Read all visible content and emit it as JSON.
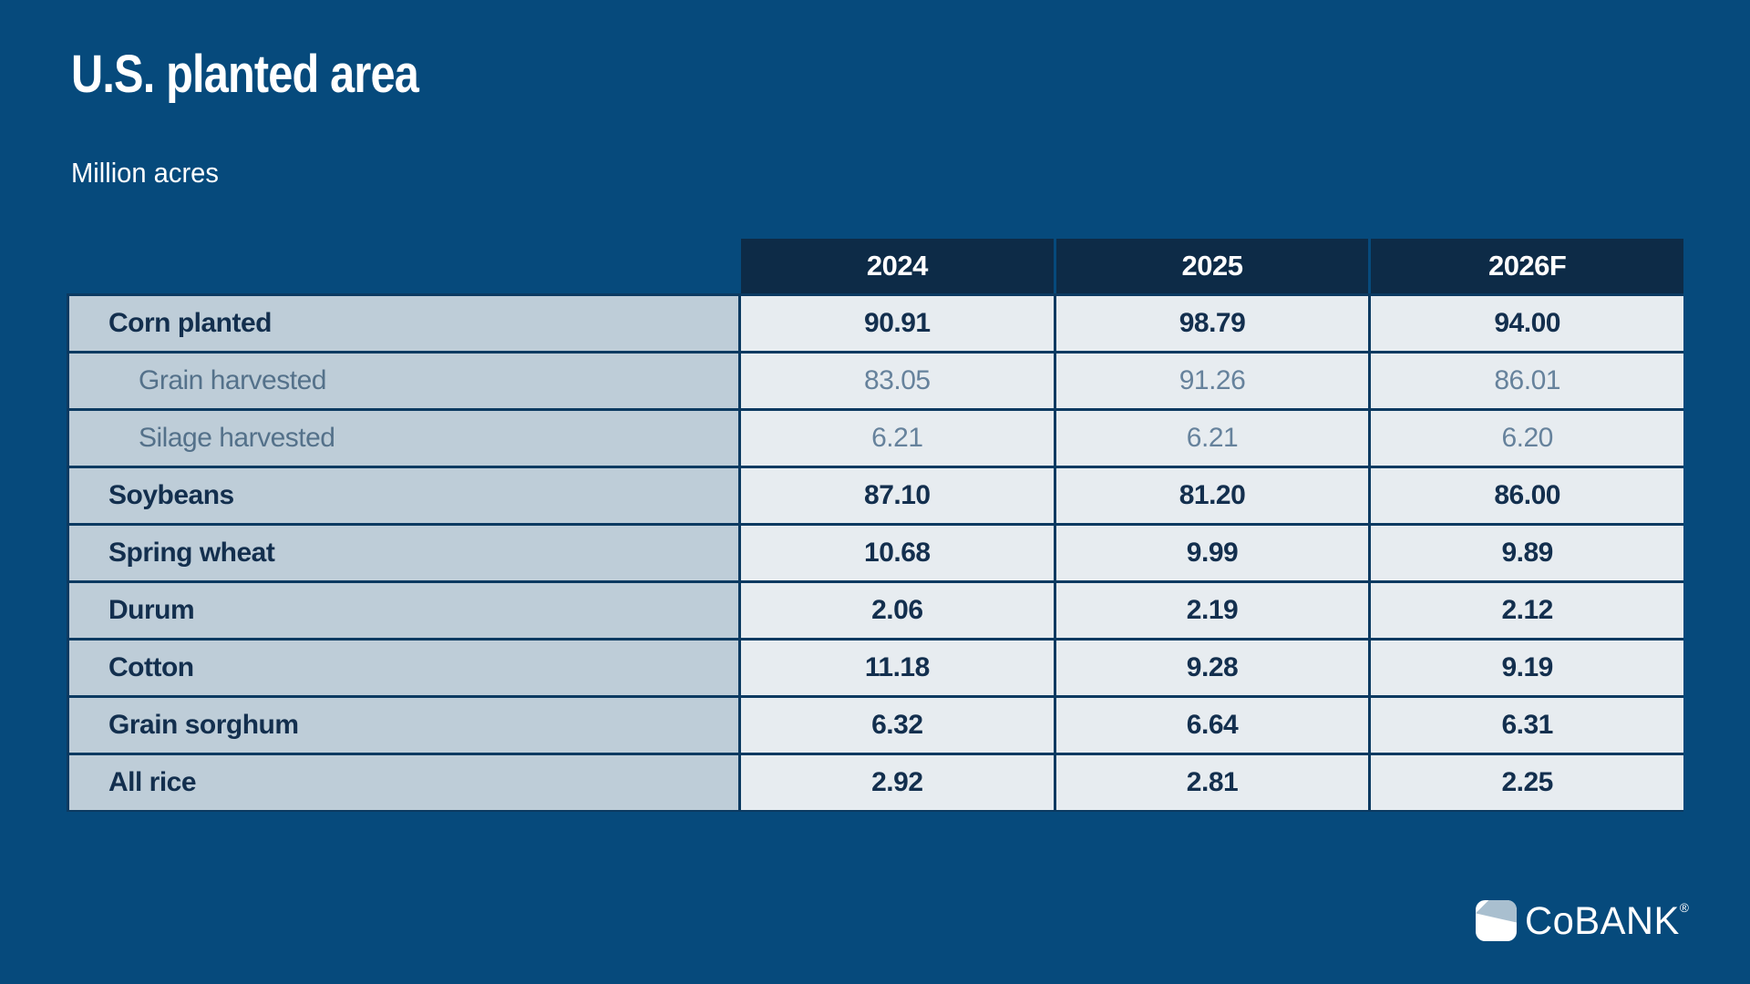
{
  "title": "U.S. planted area",
  "subtitle": "Million acres",
  "colors": {
    "page_background": "#064A7C",
    "header_background": "#0D2B47",
    "label_cell_background": "#BECDD8",
    "value_cell_background": "#E7ECF0",
    "primary_text": "#132F4E",
    "secondary_text": "#54718A",
    "grid_border": "#0C3A61",
    "title_text": "#FFFFFF",
    "logo_light_blue": "#A9BFCF"
  },
  "table": {
    "columns": [
      "2024",
      "2025",
      "2026F"
    ],
    "rows": [
      {
        "label": "Corn planted",
        "style": "main",
        "values": [
          "90.91",
          "98.79",
          "94.00"
        ]
      },
      {
        "label": "Grain harvested",
        "style": "sub",
        "values": [
          "83.05",
          "91.26",
          "86.01"
        ]
      },
      {
        "label": "Silage harvested",
        "style": "sub",
        "values": [
          "6.21",
          "6.21",
          "6.20"
        ]
      },
      {
        "label": "Soybeans",
        "style": "main",
        "values": [
          "87.10",
          "81.20",
          "86.00"
        ]
      },
      {
        "label": "Spring wheat",
        "style": "main",
        "values": [
          "10.68",
          "9.99",
          "9.89"
        ]
      },
      {
        "label": "Durum",
        "style": "main",
        "values": [
          "2.06",
          "2.19",
          "2.12"
        ]
      },
      {
        "label": "Cotton",
        "style": "main",
        "values": [
          "11.18",
          "9.28",
          "9.19"
        ]
      },
      {
        "label": "Grain sorghum",
        "style": "main",
        "values": [
          "6.32",
          "6.64",
          "6.31"
        ]
      },
      {
        "label": "All rice",
        "style": "main",
        "values": [
          "2.92",
          "2.81",
          "2.25"
        ]
      }
    ]
  },
  "logo": {
    "text": "CoBANK",
    "registered_mark": "®"
  },
  "chart_data": {
    "type": "table",
    "title": "U.S. planted area",
    "subtitle": "Million acres",
    "unit": "million acres",
    "columns": [
      "2024",
      "2025",
      "2026F"
    ],
    "row_labels": [
      "Corn planted",
      "Grain harvested",
      "Silage harvested",
      "Soybeans",
      "Spring wheat",
      "Durum",
      "Cotton",
      "Grain sorghum",
      "All rice"
    ],
    "sub_rows": [
      "Grain harvested",
      "Silage harvested"
    ],
    "series": [
      {
        "name": "2024",
        "values": [
          90.91,
          83.05,
          6.21,
          87.1,
          10.68,
          2.06,
          11.18,
          6.32,
          2.92
        ]
      },
      {
        "name": "2025",
        "values": [
          98.79,
          91.26,
          6.21,
          81.2,
          9.99,
          2.19,
          9.28,
          6.64,
          2.81
        ]
      },
      {
        "name": "2026F",
        "values": [
          94.0,
          86.01,
          6.2,
          86.0,
          9.89,
          2.12,
          9.19,
          6.31,
          2.25
        ]
      }
    ]
  }
}
